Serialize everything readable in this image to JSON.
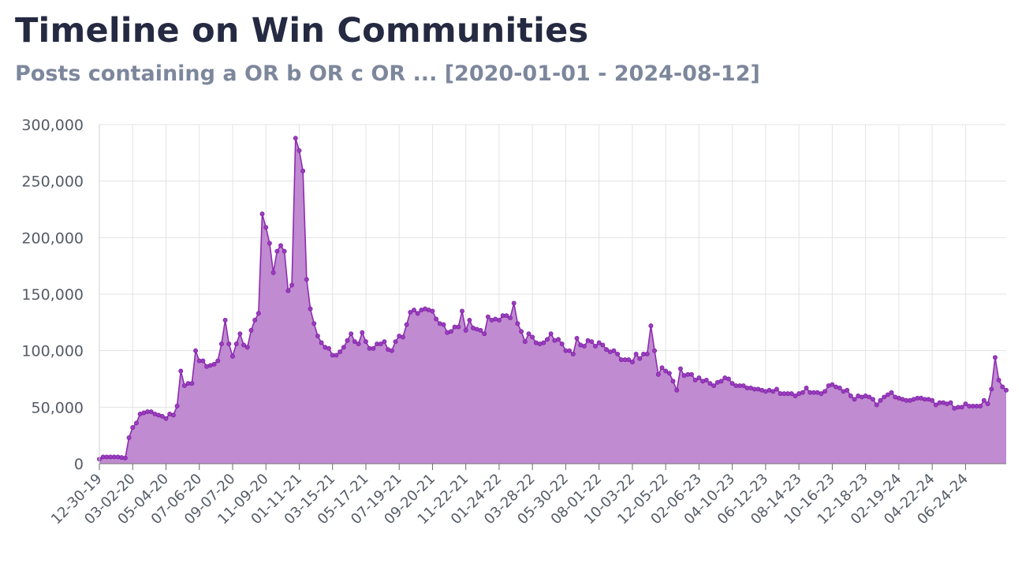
{
  "title": "Timeline on Win Communities",
  "subtitle": "Posts containing a OR b OR c OR ... [2020-01-01 - 2024-08-12]",
  "colors": {
    "line": "#8e2bb1",
    "fill": "#c08bd0",
    "marker": "#9a3cc0",
    "grid": "#e3e3e6"
  },
  "chart_data": {
    "type": "area",
    "title": "Timeline on Win Communities",
    "xlabel": "",
    "ylabel": "",
    "ylim": [
      0,
      300000
    ],
    "yticks": [
      0,
      50000,
      100000,
      150000,
      200000,
      250000,
      300000
    ],
    "ytick_labels": [
      "0",
      "50,000",
      "100,000",
      "150,000",
      "200,000",
      "250,000",
      "300,000"
    ],
    "x_start": "2019-12-30",
    "x_step": "weekly",
    "xtick_labels": [
      "12-30-19",
      "03-02-20",
      "05-04-20",
      "07-06-20",
      "09-07-20",
      "11-09-20",
      "01-11-21",
      "03-15-21",
      "05-17-21",
      "07-19-21",
      "09-20-21",
      "11-22-21",
      "01-24-22",
      "03-28-22",
      "05-30-22",
      "08-01-22",
      "10-03-22",
      "12-05-22",
      "02-06-23",
      "04-10-23",
      "06-12-23",
      "08-14-23",
      "10-16-23",
      "12-18-23",
      "02-19-24",
      "04-22-24",
      "06-24-24"
    ],
    "grid": true,
    "legend": "none",
    "series": [
      {
        "values": [
          4000,
          6000,
          6000,
          6000,
          6000,
          6000,
          5500,
          5000,
          23000,
          32000,
          36000,
          44000,
          45000,
          46000,
          46000,
          44000,
          43000,
          42000,
          40000,
          44000,
          43000,
          51000,
          82000,
          69000,
          71000,
          71000,
          100000,
          91000,
          91000,
          86000,
          87000,
          88000,
          91000,
          106000,
          127000,
          106000,
          95000,
          106000,
          115000,
          105000,
          103000,
          118000,
          127000,
          133000,
          221000,
          209000,
          195000,
          169000,
          188000,
          193000,
          188000,
          153000,
          158000,
          288000,
          277000,
          259000,
          163000,
          137000,
          124000,
          113000,
          107000,
          103000,
          102000,
          96000,
          96000,
          99000,
          103000,
          109000,
          115000,
          108000,
          106000,
          116000,
          108000,
          102000,
          102000,
          106000,
          106000,
          108000,
          101000,
          100000,
          108000,
          113000,
          112000,
          123000,
          134000,
          136000,
          133000,
          136000,
          137000,
          136000,
          135000,
          128000,
          124000,
          123000,
          116000,
          117000,
          121000,
          121000,
          135000,
          118000,
          127000,
          120000,
          119000,
          118000,
          115000,
          130000,
          127000,
          128000,
          127000,
          131000,
          131000,
          129000,
          142000,
          124000,
          117000,
          108000,
          115000,
          112000,
          107000,
          106000,
          107000,
          110000,
          115000,
          109000,
          110000,
          106000,
          100000,
          100000,
          97000,
          111000,
          105000,
          104000,
          109000,
          108000,
          104000,
          107000,
          105000,
          101000,
          99000,
          100000,
          97000,
          92000,
          92000,
          92000,
          90000,
          97000,
          93000,
          97000,
          97000,
          122000,
          100000,
          79000,
          85000,
          82000,
          80000,
          73000,
          65000,
          84000,
          78000,
          79000,
          79000,
          74000,
          76000,
          73000,
          74000,
          71000,
          69000,
          72000,
          73000,
          76000,
          75000,
          71000,
          69000,
          69000,
          69000,
          67000,
          67000,
          66000,
          66000,
          65000,
          64000,
          65000,
          64000,
          66000,
          62000,
          62000,
          62000,
          62000,
          60000,
          62000,
          63000,
          67000,
          63000,
          63000,
          63000,
          62000,
          64000,
          69000,
          70000,
          68000,
          67000,
          64000,
          65000,
          60000,
          57000,
          60000,
          59000,
          60000,
          59000,
          57000,
          52000,
          56000,
          59000,
          61000,
          63000,
          59000,
          58000,
          57000,
          56000,
          56000,
          57000,
          58000,
          58000,
          57000,
          57000,
          56000,
          52000,
          54000,
          54000,
          53000,
          54000,
          49000,
          50000,
          50000,
          53000,
          51000,
          51000,
          51000,
          51000,
          56000,
          53000,
          66000,
          94000,
          74000,
          68000,
          65000
        ]
      }
    ]
  }
}
